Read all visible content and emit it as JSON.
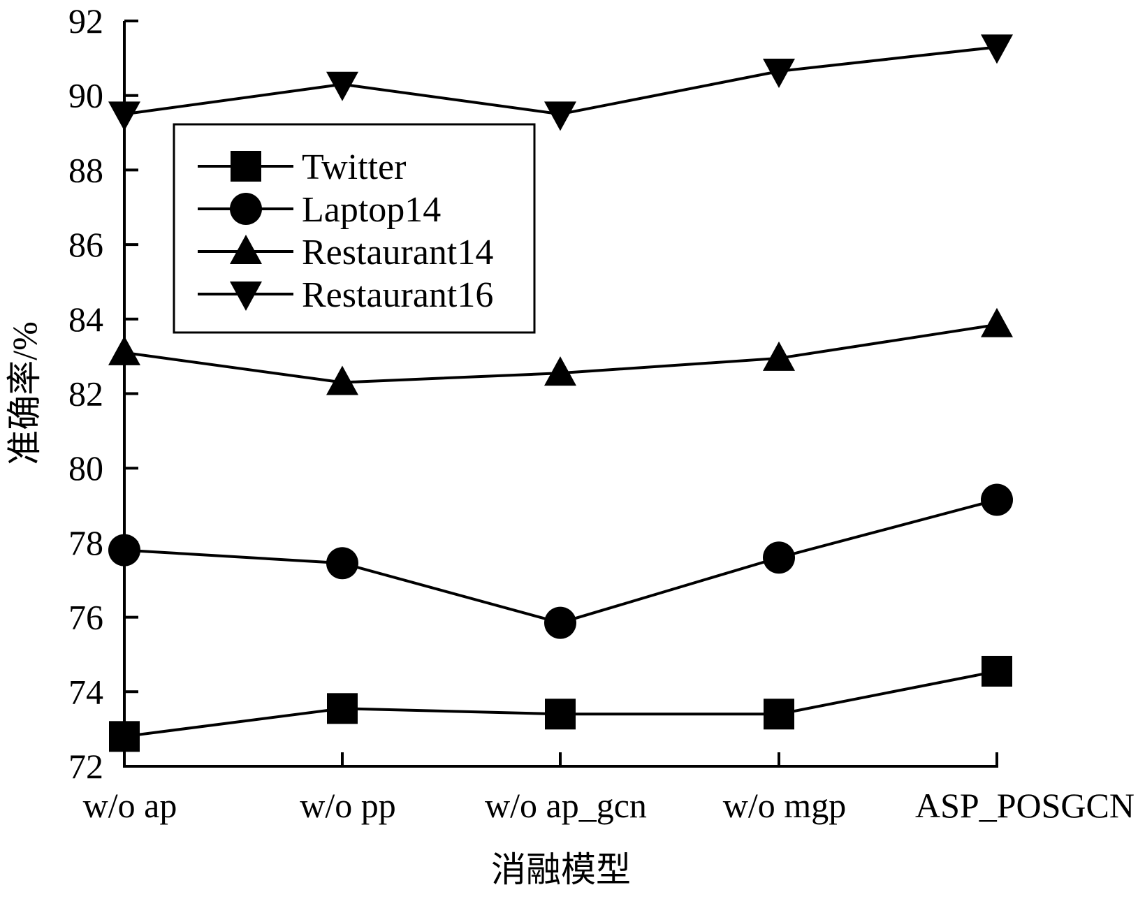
{
  "chart_data": {
    "type": "line",
    "categories": [
      "w/o ap",
      "w/o pp",
      "w/o ap_gcn",
      "w/o mgp",
      "ASP_POSGCN"
    ],
    "series": [
      {
        "name": "Twitter",
        "marker": "square",
        "values": [
          72.8,
          73.55,
          73.4,
          73.4,
          74.55
        ]
      },
      {
        "name": "Laptop14",
        "marker": "circle",
        "values": [
          77.8,
          77.45,
          75.85,
          77.6,
          79.15
        ]
      },
      {
        "name": "Restaurant14",
        "marker": "triangle-up",
        "values": [
          83.1,
          82.3,
          82.55,
          82.95,
          83.85
        ]
      },
      {
        "name": "Restaurant16",
        "marker": "triangle-down",
        "values": [
          89.5,
          90.3,
          89.5,
          90.65,
          91.3
        ]
      }
    ],
    "xlabel": "消融模型",
    "ylabel": "准确率/%",
    "ylim": [
      72,
      92
    ],
    "yticks": [
      "72",
      "74",
      "76",
      "78",
      "80",
      "82",
      "84",
      "86",
      "88",
      "90",
      "92"
    ],
    "grid": false,
    "legend_position": "top-left",
    "line_color": "#000000"
  }
}
